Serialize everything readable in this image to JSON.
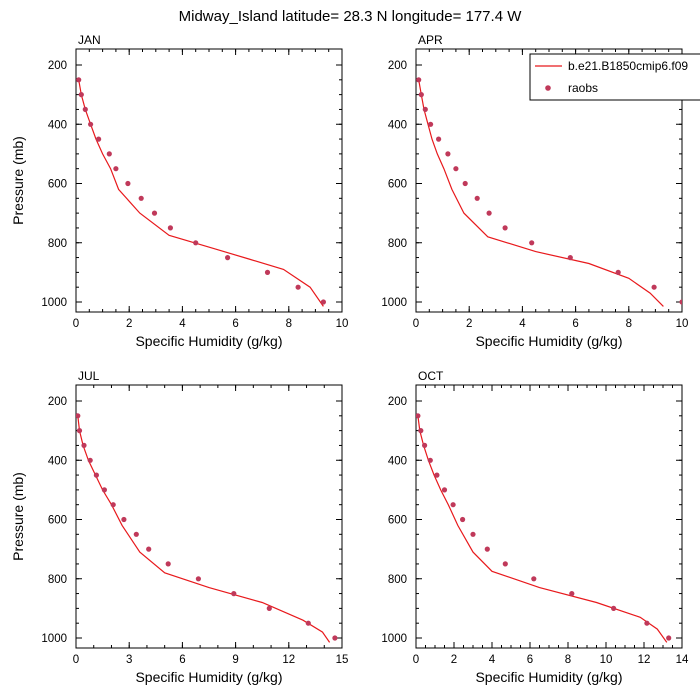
{
  "figure": {
    "title": "Midway_Island  latitude= 28.3 N longitude= 177.4 W"
  },
  "legend": {
    "placement": "top-right",
    "entries": [
      {
        "label": "b.e21.B1850cmip6.f09",
        "kind": "line",
        "color": "#e8191c"
      },
      {
        "label": "raobs",
        "kind": "marker",
        "color": "#c0395a"
      }
    ]
  },
  "colors": {
    "model_line": "#e8191c",
    "obs_marker": "#c0395a",
    "axis": "#000000"
  },
  "chart_data": [
    {
      "type": "line",
      "panel_label": "JAN",
      "xlabel": "Specific Humidity (g/kg)",
      "ylabel": "Pressure (mb)",
      "xlim": [
        0,
        10
      ],
      "ylim": [
        1000,
        200
      ],
      "y_reversed": true,
      "xticks": [
        0,
        2,
        4,
        6,
        8,
        10
      ],
      "yticks": [
        200,
        400,
        600,
        800,
        1000
      ],
      "series": [
        {
          "name": "b.e21.B1850cmip6.f09",
          "kind": "line",
          "points": [
            [
              0.1,
              250
            ],
            [
              0.2,
              300
            ],
            [
              0.35,
              350
            ],
            [
              0.55,
              400
            ],
            [
              0.75,
              450
            ],
            [
              1.0,
              500
            ],
            [
              1.3,
              550
            ],
            [
              1.6,
              620
            ],
            [
              2.4,
              700
            ],
            [
              3.5,
              775
            ],
            [
              5.2,
              820
            ],
            [
              6.5,
              855
            ],
            [
              7.8,
              890
            ],
            [
              8.8,
              950
            ],
            [
              9.3,
              1015
            ]
          ]
        },
        {
          "name": "raobs",
          "kind": "scatter",
          "points": [
            [
              0.1,
              250
            ],
            [
              0.2,
              300
            ],
            [
              0.35,
              350
            ],
            [
              0.55,
              400
            ],
            [
              0.85,
              450
            ],
            [
              1.25,
              500
            ],
            [
              1.5,
              550
            ],
            [
              1.95,
              600
            ],
            [
              2.45,
              650
            ],
            [
              2.95,
              700
            ],
            [
              3.55,
              750
            ],
            [
              4.5,
              800
            ],
            [
              5.7,
              850
            ],
            [
              7.2,
              900
            ],
            [
              8.35,
              950
            ],
            [
              9.3,
              1000
            ]
          ]
        }
      ]
    },
    {
      "type": "line",
      "panel_label": "APR",
      "xlabel": "Specific Humidity (g/kg)",
      "ylabel": "",
      "xlim": [
        0,
        10
      ],
      "ylim": [
        1000,
        200
      ],
      "y_reversed": true,
      "xticks": [
        0,
        2,
        4,
        6,
        8,
        10
      ],
      "yticks": [
        200,
        400,
        600,
        800,
        1000
      ],
      "series": [
        {
          "name": "b.e21.B1850cmip6.f09",
          "kind": "line",
          "points": [
            [
              0.1,
              250
            ],
            [
              0.2,
              300
            ],
            [
              0.3,
              350
            ],
            [
              0.45,
              400
            ],
            [
              0.6,
              450
            ],
            [
              0.8,
              500
            ],
            [
              1.05,
              550
            ],
            [
              1.35,
              620
            ],
            [
              1.8,
              700
            ],
            [
              2.7,
              780
            ],
            [
              4.5,
              830
            ],
            [
              6.5,
              870
            ],
            [
              8.0,
              920
            ],
            [
              8.8,
              970
            ],
            [
              9.3,
              1015
            ]
          ]
        },
        {
          "name": "raobs",
          "kind": "scatter",
          "points": [
            [
              0.1,
              250
            ],
            [
              0.2,
              300
            ],
            [
              0.35,
              350
            ],
            [
              0.55,
              400
            ],
            [
              0.85,
              450
            ],
            [
              1.2,
              500
            ],
            [
              1.5,
              550
            ],
            [
              1.85,
              600
            ],
            [
              2.3,
              650
            ],
            [
              2.75,
              700
            ],
            [
              3.35,
              750
            ],
            [
              4.35,
              800
            ],
            [
              5.8,
              850
            ],
            [
              7.6,
              900
            ],
            [
              8.95,
              950
            ],
            [
              10.0,
              1000
            ]
          ]
        }
      ]
    },
    {
      "type": "line",
      "panel_label": "JUL",
      "xlabel": "Specific Humidity (g/kg)",
      "ylabel": "Pressure (mb)",
      "xlim": [
        0,
        15
      ],
      "ylim": [
        1000,
        200
      ],
      "y_reversed": true,
      "xticks": [
        0,
        3,
        6,
        9,
        12,
        15
      ],
      "yticks": [
        200,
        400,
        600,
        800,
        1000
      ],
      "series": [
        {
          "name": "b.e21.B1850cmip6.f09",
          "kind": "line",
          "points": [
            [
              0.1,
              250
            ],
            [
              0.2,
              300
            ],
            [
              0.4,
              350
            ],
            [
              0.7,
              400
            ],
            [
              1.1,
              450
            ],
            [
              1.5,
              500
            ],
            [
              2.0,
              550
            ],
            [
              2.6,
              620
            ],
            [
              3.6,
              710
            ],
            [
              5.0,
              780
            ],
            [
              7.5,
              830
            ],
            [
              10.5,
              880
            ],
            [
              12.8,
              940
            ],
            [
              13.9,
              980
            ],
            [
              14.3,
              1015
            ]
          ]
        },
        {
          "name": "raobs",
          "kind": "scatter",
          "points": [
            [
              0.1,
              250
            ],
            [
              0.2,
              300
            ],
            [
              0.45,
              350
            ],
            [
              0.8,
              400
            ],
            [
              1.15,
              450
            ],
            [
              1.6,
              500
            ],
            [
              2.1,
              550
            ],
            [
              2.7,
              600
            ],
            [
              3.4,
              650
            ],
            [
              4.1,
              700
            ],
            [
              5.2,
              750
            ],
            [
              6.9,
              800
            ],
            [
              8.9,
              850
            ],
            [
              10.9,
              900
            ],
            [
              13.1,
              950
            ],
            [
              14.6,
              1000
            ]
          ]
        }
      ]
    },
    {
      "type": "line",
      "panel_label": "OCT",
      "xlabel": "Specific Humidity (g/kg)",
      "ylabel": "",
      "xlim": [
        0,
        14
      ],
      "ylim": [
        1000,
        200
      ],
      "y_reversed": true,
      "xticks": [
        0,
        2,
        4,
        6,
        8,
        10,
        12,
        14
      ],
      "yticks": [
        200,
        400,
        600,
        800,
        1000
      ],
      "series": [
        {
          "name": "b.e21.B1850cmip6.f09",
          "kind": "line",
          "points": [
            [
              0.1,
              250
            ],
            [
              0.2,
              300
            ],
            [
              0.4,
              350
            ],
            [
              0.65,
              400
            ],
            [
              0.95,
              450
            ],
            [
              1.3,
              500
            ],
            [
              1.7,
              550
            ],
            [
              2.2,
              620
            ],
            [
              3.0,
              710
            ],
            [
              4.0,
              775
            ],
            [
              6.5,
              830
            ],
            [
              9.5,
              880
            ],
            [
              11.8,
              930
            ],
            [
              12.7,
              970
            ],
            [
              13.2,
              1015
            ]
          ]
        },
        {
          "name": "raobs",
          "kind": "scatter",
          "points": [
            [
              0.1,
              250
            ],
            [
              0.25,
              300
            ],
            [
              0.45,
              350
            ],
            [
              0.75,
              400
            ],
            [
              1.1,
              450
            ],
            [
              1.5,
              500
            ],
            [
              1.95,
              550
            ],
            [
              2.45,
              600
            ],
            [
              3.0,
              650
            ],
            [
              3.75,
              700
            ],
            [
              4.7,
              750
            ],
            [
              6.2,
              800
            ],
            [
              8.2,
              850
            ],
            [
              10.4,
              900
            ],
            [
              12.15,
              950
            ],
            [
              13.3,
              1000
            ]
          ]
        }
      ]
    }
  ]
}
